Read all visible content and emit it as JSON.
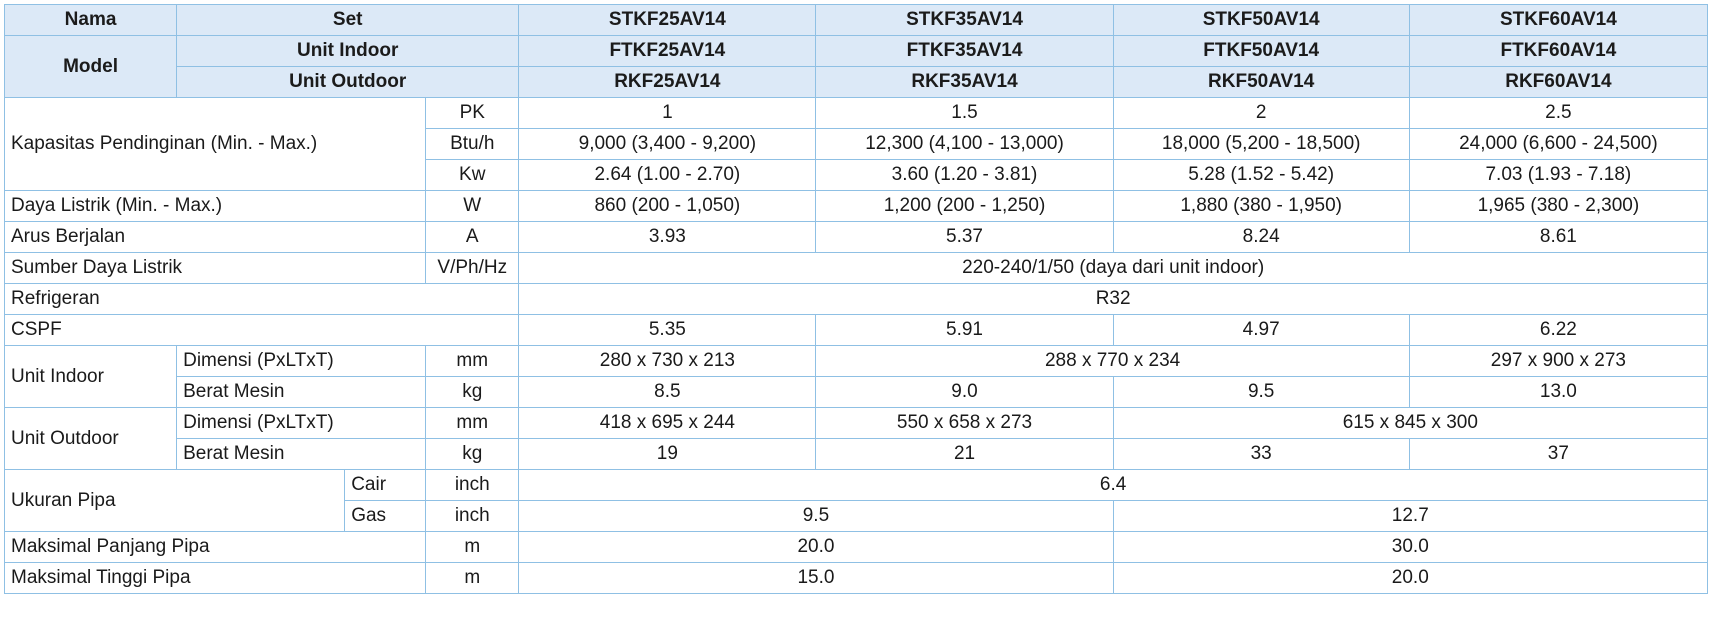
{
  "table": {
    "rows": [
      [
        "Nama",
        "Set",
        "STKF25AV14",
        "STKF35AV14",
        "STKF50AV14",
        "STKF60AV14"
      ],
      [
        "Model",
        "Unit Indoor",
        "FTKF25AV14",
        "FTKF35AV14",
        "FTKF50AV14",
        "FTKF60AV14"
      ],
      [
        "Unit Outdoor",
        "RKF25AV14",
        "RKF35AV14",
        "RKF50AV14",
        "RKF60AV14"
      ],
      [
        "Kapasitas Pendinginan (Min. - Max.)",
        "PK",
        "1",
        "1.5",
        "2",
        "2.5"
      ],
      [
        "Btu/h",
        "9,000 (3,400 - 9,200)",
        "12,300 (4,100 - 13,000)",
        "18,000 (5,200 - 18,500)",
        "24,000 (6,600 - 24,500)"
      ],
      [
        "Kw",
        "2.64 (1.00 - 2.70)",
        "3.60 (1.20 - 3.81)",
        "5.28 (1.52 - 5.42)",
        "7.03 (1.93 - 7.18)"
      ],
      [
        "Daya Listrik (Min. - Max.)",
        "W",
        "860 (200 - 1,050)",
        "1,200 (200 - 1,250)",
        "1,880 (380 - 1,950)",
        "1,965 (380 - 2,300)"
      ],
      [
        "Arus Berjalan",
        "A",
        "3.93",
        "5.37",
        "8.24",
        "8.61"
      ],
      [
        "Sumber Daya Listrik",
        "V/Ph/Hz",
        "220-240/1/50 (daya dari unit indoor)"
      ],
      [
        "Refrigeran",
        "R32"
      ],
      [
        "CSPF",
        "5.35",
        "5.91",
        "4.97",
        "6.22"
      ],
      [
        "Unit Indoor",
        "Dimensi (PxLTxT)",
        "mm",
        "280 x 730 x 213",
        "288 x 770 x 234",
        "297 x 900 x 273"
      ],
      [
        "Berat Mesin",
        "kg",
        "8.5",
        "9.0",
        "9.5",
        "13.0"
      ],
      [
        "Unit Outdoor",
        "Dimensi (PxLTxT)",
        "mm",
        "418 x 695 x 244",
        "550 x 658 x 273",
        "615 x 845 x 300"
      ],
      [
        "Berat Mesin",
        "kg",
        "19",
        "21",
        "33",
        "37"
      ],
      [
        "Ukuran Pipa",
        "Cair",
        "inch",
        "6.4"
      ],
      [
        "Gas",
        "inch",
        "9.5",
        "12.7"
      ],
      [
        "Maksimal Panjang Pipa",
        "m",
        "20.0",
        "30.0"
      ],
      [
        "Maksimal Tinggi Pipa",
        "m",
        "15.0",
        "20.0"
      ]
    ]
  }
}
